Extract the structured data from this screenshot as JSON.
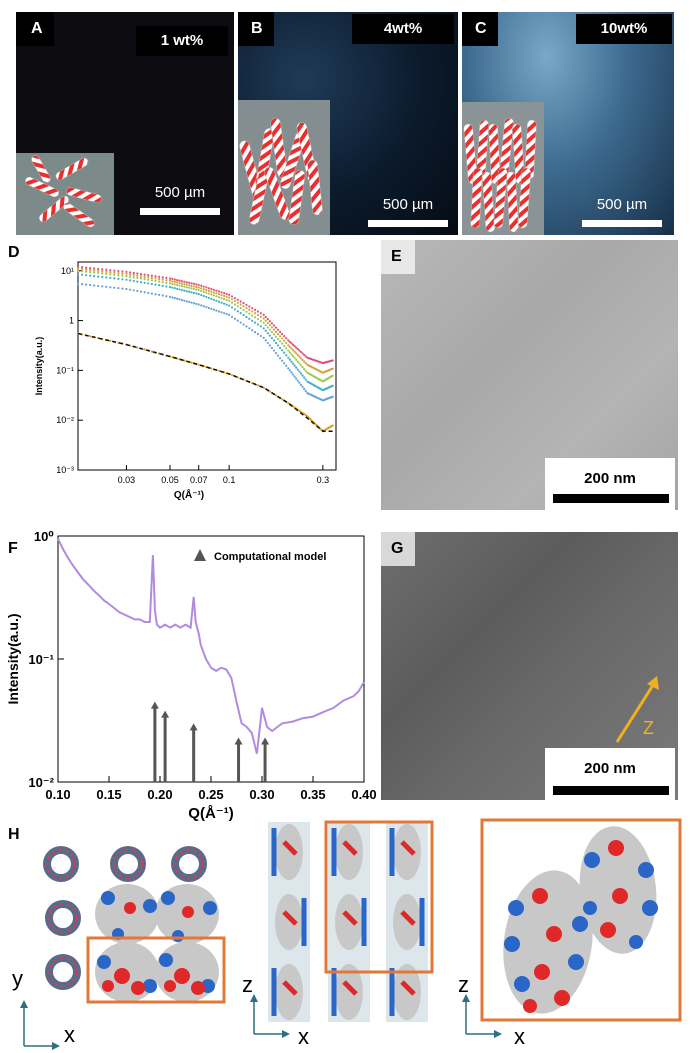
{
  "panels": {
    "A": {
      "letter": "A",
      "label": "1 wt%",
      "scale": "500 µm"
    },
    "B": {
      "letter": "B",
      "label": "4wt%",
      "scale": "500 µm"
    },
    "C": {
      "letter": "C",
      "label": "10wt%",
      "scale": "500 µm"
    },
    "D": {
      "letter": "D"
    },
    "E": {
      "letter": "E",
      "scale": "200 nm"
    },
    "F": {
      "letter": "F"
    },
    "G": {
      "letter": "G",
      "scale": "200 nm",
      "arrow_label": "Z"
    },
    "H": {
      "letter": "H"
    }
  },
  "h_axes": {
    "left": {
      "vertical": "y",
      "horizontal": "x"
    },
    "middle": {
      "vertical": "z",
      "horizontal": "x"
    },
    "right": {
      "vertical": "z",
      "horizontal": "x"
    }
  },
  "colors": {
    "tube_red": "#e8302f",
    "tube_white": "#ffffff",
    "polar_bg_A": "#0b0b10",
    "polar_bg_B": "#0c1a2b",
    "polar_bg_C": "#3d6a8f",
    "purple": "#b38ae0",
    "orange_box": "#e07838",
    "arrow_yellow": "#f0b020",
    "axis_teal": "#2f6e80"
  },
  "chart_data": [
    {
      "id": "D",
      "type": "scatter",
      "xlabel": "Q(Å⁻¹)",
      "ylabel": "Intensity(a.u.)",
      "xscale": "log",
      "yscale": "log",
      "xlim": [
        0.017,
        0.35
      ],
      "ylim": [
        0.001,
        15
      ],
      "xticks": [
        "0.03",
        "0.05",
        "0.07",
        "0.1",
        "0.3"
      ],
      "yticks": [
        "10⁻³",
        "10⁻²",
        "10⁻¹",
        "1",
        "10¹"
      ],
      "grid": false,
      "series": [
        {
          "color": "#e0507a",
          "x": [
            0.017,
            0.03,
            0.05,
            0.07,
            0.1,
            0.15,
            0.2,
            0.25,
            0.3,
            0.34
          ],
          "y": [
            12,
            9.5,
            7,
            5.2,
            3.3,
            1.3,
            0.4,
            0.18,
            0.14,
            0.16
          ]
        },
        {
          "color": "#d8a040",
          "x": [
            0.017,
            0.03,
            0.05,
            0.07,
            0.1,
            0.15,
            0.2,
            0.25,
            0.3,
            0.34
          ],
          "y": [
            11,
            8.6,
            6.3,
            4.6,
            2.9,
            1.1,
            0.32,
            0.13,
            0.09,
            0.11
          ]
        },
        {
          "color": "#a0c850",
          "x": [
            0.017,
            0.03,
            0.05,
            0.07,
            0.1,
            0.15,
            0.2,
            0.25,
            0.3,
            0.34
          ],
          "y": [
            10,
            7.8,
            5.6,
            4.1,
            2.5,
            0.9,
            0.25,
            0.09,
            0.06,
            0.08
          ]
        },
        {
          "color": "#40b0c8",
          "x": [
            0.017,
            0.03,
            0.05,
            0.07,
            0.1,
            0.15,
            0.2,
            0.25,
            0.3,
            0.34
          ],
          "y": [
            8.5,
            6.6,
            4.7,
            3.4,
            2.0,
            0.7,
            0.18,
            0.06,
            0.04,
            0.05
          ]
        },
        {
          "color": "#6aa0d8",
          "x": [
            0.017,
            0.03,
            0.05,
            0.07,
            0.1,
            0.15,
            0.2,
            0.25,
            0.3,
            0.34
          ],
          "y": [
            5.5,
            4.3,
            3.0,
            2.1,
            1.3,
            0.45,
            0.11,
            0.035,
            0.025,
            0.03
          ]
        },
        {
          "color": "#d8a020",
          "x": [
            0.017,
            0.03,
            0.05,
            0.07,
            0.1,
            0.15,
            0.2,
            0.25,
            0.3,
            0.34
          ],
          "y": [
            0.55,
            0.33,
            0.19,
            0.13,
            0.085,
            0.045,
            0.022,
            0.012,
            0.006,
            0.008
          ]
        }
      ],
      "fit": {
        "color": "#111111",
        "x": [
          0.017,
          0.03,
          0.05,
          0.07,
          0.1,
          0.15,
          0.2,
          0.25,
          0.3,
          0.34
        ],
        "y": [
          0.55,
          0.33,
          0.19,
          0.13,
          0.085,
          0.045,
          0.022,
          0.011,
          0.006,
          0.006
        ]
      }
    },
    {
      "id": "F",
      "type": "line",
      "xlabel": "Q(Å⁻¹)",
      "ylabel": "Intensity(a.u.)",
      "yscale": "log",
      "xlim": [
        0.1,
        0.4
      ],
      "ylim": [
        0.01,
        1
      ],
      "xticks": [
        "0.10",
        "0.15",
        "0.20",
        "0.25",
        "0.30",
        "0.35",
        "0.40"
      ],
      "yticks": [
        "10⁻²",
        "10⁻¹",
        "10⁰"
      ],
      "grid": false,
      "legend": "Computational model",
      "legend_position": "top-right",
      "series": [
        {
          "color": "#b38ae0",
          "x": [
            0.1,
            0.105,
            0.11,
            0.115,
            0.12,
            0.125,
            0.13,
            0.135,
            0.14,
            0.145,
            0.15,
            0.155,
            0.16,
            0.165,
            0.17,
            0.175,
            0.18,
            0.185,
            0.19,
            0.193,
            0.195,
            0.197,
            0.2,
            0.205,
            0.21,
            0.215,
            0.22,
            0.225,
            0.23,
            0.233,
            0.235,
            0.238,
            0.24,
            0.245,
            0.25,
            0.255,
            0.26,
            0.265,
            0.27,
            0.275,
            0.28,
            0.285,
            0.29,
            0.295,
            0.3,
            0.305,
            0.31,
            0.315,
            0.32,
            0.33,
            0.34,
            0.35,
            0.36,
            0.37,
            0.38,
            0.39,
            0.395,
            0.4
          ],
          "y": [
            0.95,
            0.78,
            0.66,
            0.57,
            0.5,
            0.44,
            0.4,
            0.36,
            0.33,
            0.3,
            0.28,
            0.26,
            0.24,
            0.23,
            0.22,
            0.21,
            0.21,
            0.2,
            0.2,
            0.7,
            0.25,
            0.19,
            0.18,
            0.19,
            0.18,
            0.19,
            0.18,
            0.19,
            0.18,
            0.32,
            0.2,
            0.16,
            0.13,
            0.1,
            0.085,
            0.08,
            0.085,
            0.082,
            0.07,
            0.045,
            0.03,
            0.028,
            0.025,
            0.017,
            0.04,
            0.028,
            0.026,
            0.028,
            0.03,
            0.031,
            0.033,
            0.034,
            0.037,
            0.04,
            0.046,
            0.05,
            0.055,
            0.065
          ]
        }
      ],
      "markers": {
        "x": [
          0.195,
          0.205,
          0.233,
          0.277,
          0.303
        ],
        "y": [
          0.045,
          0.038,
          0.03,
          0.023,
          0.023
        ]
      }
    }
  ]
}
